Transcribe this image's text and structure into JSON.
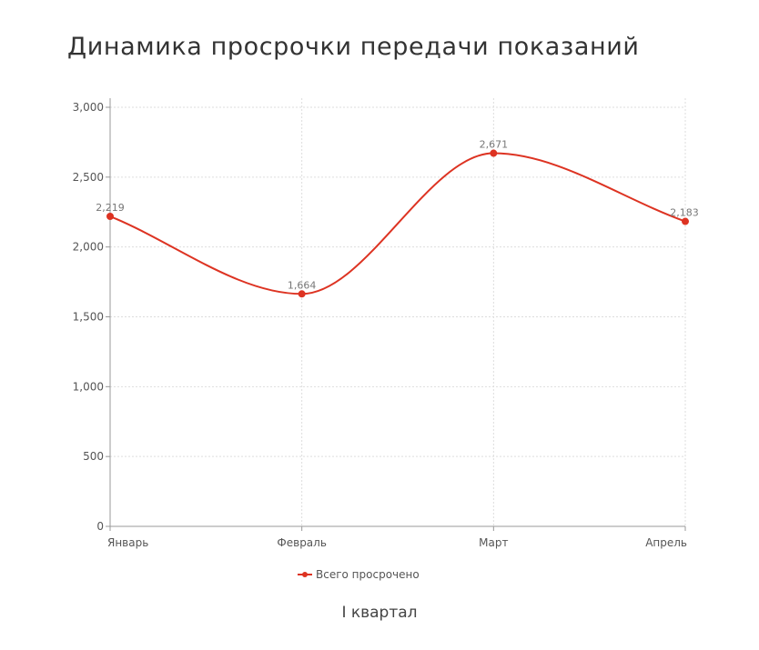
{
  "title": "Динамика просрочки передачи показаний",
  "subtitle": "I квартал",
  "colors": {
    "series": "#dd3322",
    "grid": "#dddddd",
    "axis": "#999999"
  },
  "chart_data": {
    "type": "line",
    "title": "Динамика просрочки передачи показаний",
    "xlabel": "I квартал",
    "ylabel": "",
    "categories": [
      "Январь",
      "Февраль",
      "Март",
      "Апрель"
    ],
    "series": [
      {
        "name": "Всего просрочено",
        "values": [
          2219,
          1664,
          2671,
          2183
        ],
        "labels": [
          "2,219",
          "1,664",
          "2,671",
          "2,183"
        ],
        "color": "#dd3322"
      }
    ],
    "ylim": [
      0,
      3000
    ],
    "yticks": [
      0,
      500,
      1000,
      1500,
      2000,
      2500,
      3000
    ],
    "ytick_labels": [
      "0",
      "500",
      "1,000",
      "1,500",
      "2,000",
      "2,500",
      "3,000"
    ],
    "grid": true,
    "legend": "bottom-center",
    "curve": "smooth"
  }
}
